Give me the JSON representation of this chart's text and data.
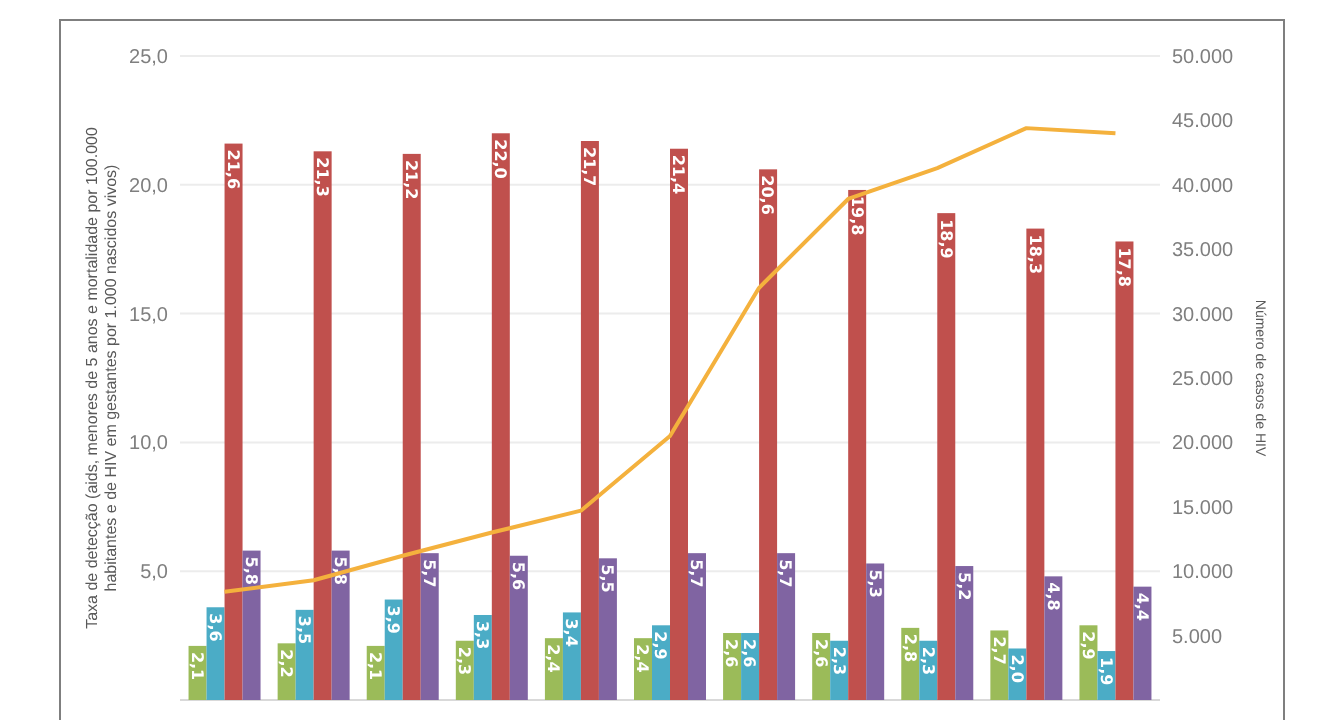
{
  "chart_data": {
    "type": "bar",
    "ylabel": "Taxa de detecção (aids, menores de 5 anos e mortalidade por 100.000 habitantes e de HIV em gestantes por 1.000 nascidos vivos)",
    "y2label": "Número de casos de HIV",
    "categories": [
      null,
      null,
      null,
      null,
      null,
      null,
      null,
      null,
      null,
      null,
      null
    ],
    "series": [
      {
        "color": "#9bbb59",
        "values": [
          2.1,
          2.2,
          2.1,
          2.3,
          2.4,
          2.4,
          2.6,
          2.6,
          2.8,
          2.7,
          2.9
        ],
        "value_labels": [
          "2,1",
          "2,2",
          "2,1",
          "2,3",
          "2,4",
          "2,4",
          "2,6",
          "2,6",
          "2,8",
          "2,7",
          "2,9"
        ]
      },
      {
        "color": "#4bacc6",
        "values": [
          3.6,
          3.5,
          3.9,
          3.3,
          3.4,
          2.9,
          2.6,
          2.3,
          2.3,
          2.0,
          1.9
        ],
        "value_labels": [
          "3,6",
          "3,5",
          "3,9",
          "3,3",
          "3,4",
          "2,9",
          "2,6",
          "2,3",
          "2,3",
          "2,0",
          "1,9"
        ]
      },
      {
        "color": "#c0504d",
        "values": [
          21.6,
          21.3,
          21.2,
          22.0,
          21.7,
          21.4,
          20.6,
          19.8,
          18.9,
          18.3,
          17.8
        ],
        "value_labels": [
          "21,6",
          "21,3",
          "21,2",
          "22,0",
          "21,7",
          "21,4",
          "20,6",
          "19,8",
          "18,9",
          "18,3",
          "17,8"
        ]
      },
      {
        "color": "#8064a2",
        "values": [
          5.8,
          5.8,
          5.7,
          5.6,
          5.5,
          5.7,
          5.7,
          5.3,
          5.2,
          4.8,
          4.4
        ],
        "value_labels": [
          "5,8",
          "5,8",
          "5,7",
          "5,6",
          "5,5",
          "5,7",
          "5,7",
          "5,3",
          "5,2",
          "4,8",
          "4,4"
        ]
      },
      {
        "type": "line",
        "axis": "y2",
        "color": "#f4b13d",
        "values": [
          8400,
          9300,
          11200,
          13000,
          14700,
          20500,
          32000,
          38900,
          41300,
          44400,
          44000
        ]
      }
    ],
    "ylim": [
      0,
      25
    ],
    "yticks": [
      {
        "value": 5,
        "label": "5,0"
      },
      {
        "value": 10,
        "label": "10,0"
      },
      {
        "value": 15,
        "label": "15,0"
      },
      {
        "value": 20,
        "label": "20,0"
      },
      {
        "value": 25,
        "label": "25,0"
      }
    ],
    "y2lim": [
      0,
      50000
    ],
    "y2ticks": [
      {
        "value": 5000,
        "label": "5.000"
      },
      {
        "value": 10000,
        "label": "10.000"
      },
      {
        "value": 15000,
        "label": "15.000"
      },
      {
        "value": 20000,
        "label": "20.000"
      },
      {
        "value": 25000,
        "label": "25.000"
      },
      {
        "value": 30000,
        "label": "30.000"
      },
      {
        "value": 35000,
        "label": "35.000"
      },
      {
        "value": 40000,
        "label": "40.000"
      },
      {
        "value": 45000,
        "label": "45.000"
      },
      {
        "value": 50000,
        "label": "50.000"
      }
    ],
    "grid": "y",
    "tick_labels": "y",
    "line_style": "solid",
    "marker": "none"
  }
}
